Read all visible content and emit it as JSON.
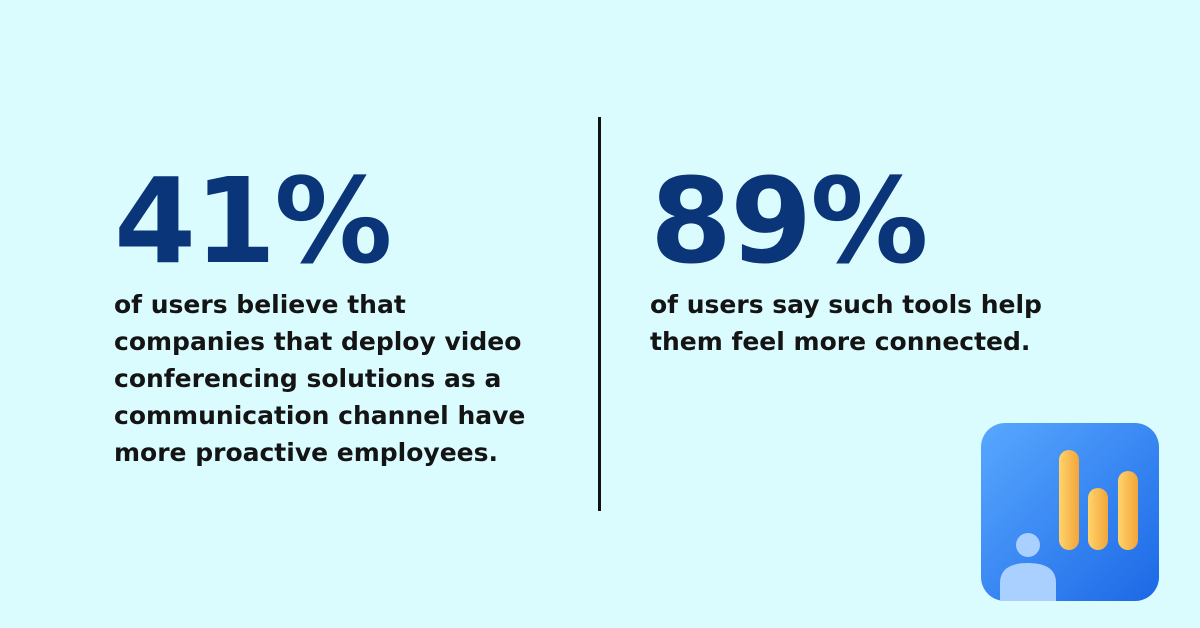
{
  "stats": [
    {
      "figure": "41%",
      "text": "of users believe that companies that deploy video conferencing solutions as a communication channel have more proactive employees."
    },
    {
      "figure": "89%",
      "text": "of users say such tools help them feel more connected."
    }
  ]
}
